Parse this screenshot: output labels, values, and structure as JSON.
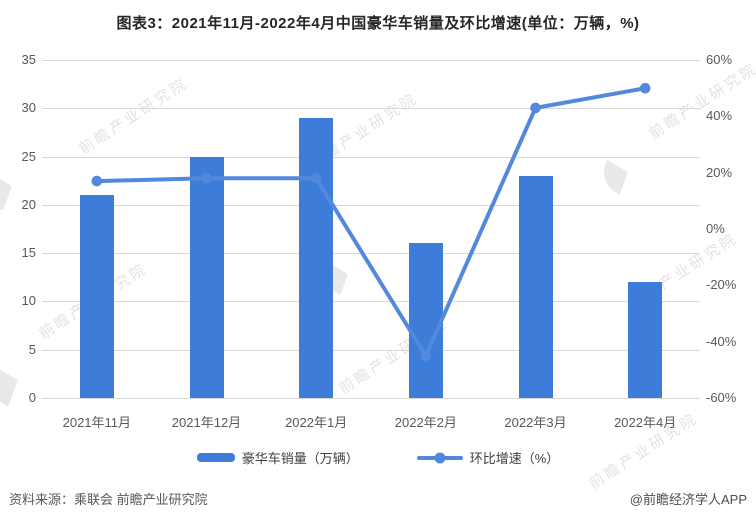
{
  "title": "图表3：2021年11月-2022年4月中国豪华车销量及环比增速(单位：万辆，%)",
  "chart_data": {
    "type": "bar+line combo",
    "categories": [
      "2021年11月",
      "2021年12月",
      "2022年1月",
      "2022年2月",
      "2022年3月",
      "2022年4月"
    ],
    "series": [
      {
        "name": "豪华车销量（万辆）",
        "type": "bar",
        "axis": "left",
        "values": [
          21,
          25,
          29,
          16,
          23,
          12
        ]
      },
      {
        "name": "环比增速（%）",
        "type": "line",
        "axis": "right",
        "values": [
          17,
          18,
          18,
          -45,
          43,
          50
        ]
      }
    ],
    "left_axis": {
      "min": 0,
      "max": 35,
      "step": 5,
      "ticks": [
        "35",
        "30",
        "25",
        "20",
        "15",
        "10",
        "5",
        "0"
      ]
    },
    "right_axis": {
      "min": -60,
      "max": 60,
      "step": 20,
      "ticks": [
        "60%",
        "40%",
        "20%",
        "0%",
        "-20%",
        "-40%",
        "-60%"
      ]
    },
    "grid": true,
    "legend_position": "bottom",
    "title": "图表3：2021年11月-2022年4月中国豪华车销量及环比增速(单位：万辆，%)"
  },
  "legend": {
    "bar_label": "豪华车销量（万辆）",
    "line_label": "环比增速（%）"
  },
  "footer": {
    "source": "资料来源：乘联会 前瞻产业研究院",
    "attribution": "@前瞻经济学人APP"
  },
  "watermark": {
    "text": "前瞻产业研究院"
  },
  "colors": {
    "bar": "#3d7cd8",
    "line": "#5389dd",
    "grid": "#d9d9d9",
    "tick_text": "#595959",
    "title_text": "#262626"
  }
}
